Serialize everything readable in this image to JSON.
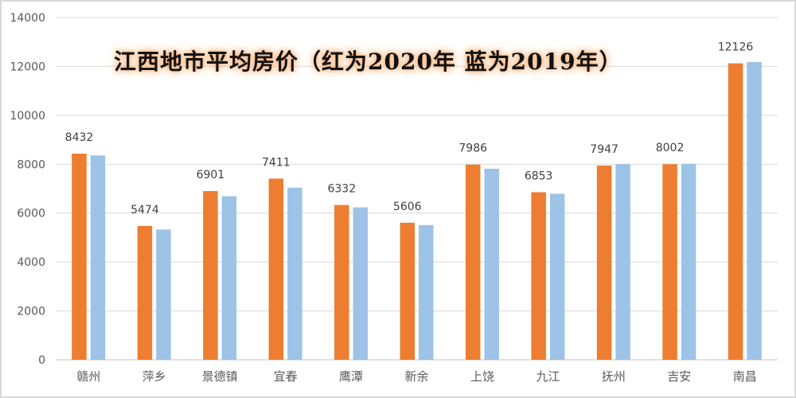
{
  "chart_data": {
    "type": "bar",
    "title": "江西地市平均房价（红为2020年 蓝为2019年）",
    "xlabel": "",
    "ylabel": "",
    "ylim": [
      0,
      14000
    ],
    "yticks": [
      0,
      2000,
      4000,
      6000,
      8000,
      10000,
      12000,
      14000
    ],
    "grid": true,
    "legend": "none (encoded in title)",
    "categories": [
      "赣州",
      "萍乡",
      "景德镇",
      "宜春",
      "鹰潭",
      "新余",
      "上饶",
      "九江",
      "抚州",
      "吉安",
      "南昌"
    ],
    "series": [
      {
        "name": "2020年",
        "color": "#ed7d31",
        "values": [
          8432,
          5474,
          6901,
          7411,
          6332,
          5606,
          7986,
          6853,
          7947,
          8002,
          12126
        ],
        "data_labels": true
      },
      {
        "name": "2019年",
        "color": "#9dc3e6",
        "values": [
          8360,
          5330,
          6690,
          7040,
          6235,
          5510,
          7815,
          6790,
          8000,
          8015,
          12180
        ],
        "data_labels": false
      }
    ]
  },
  "title": "江西地市平均房价（红为2020年 蓝为2019年）",
  "colors": {
    "series_2020": "#ed7d31",
    "series_2019": "#9dc3e6",
    "grid": "#d9d9d9",
    "axis_text": "#595959",
    "label_text": "#404040"
  }
}
